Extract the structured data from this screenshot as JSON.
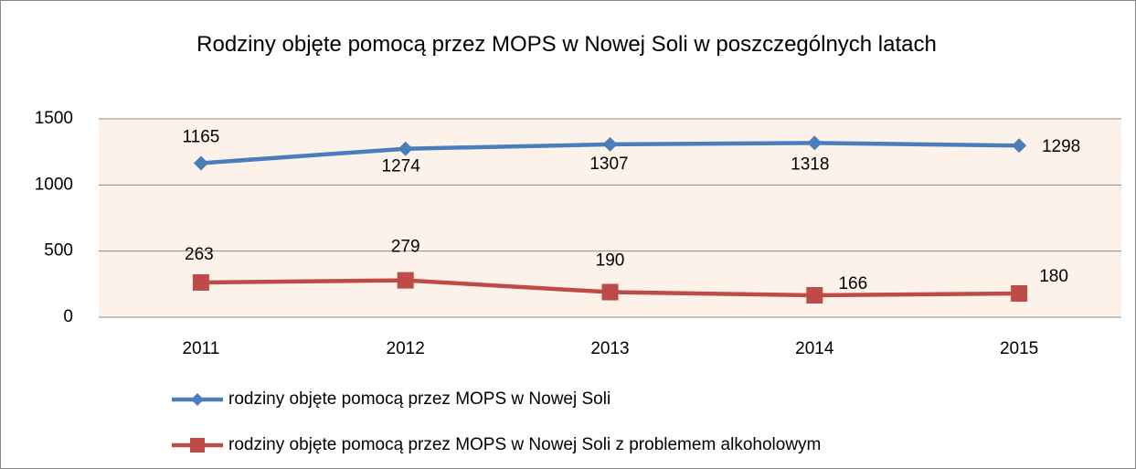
{
  "chart_data": {
    "type": "line",
    "title": "Rodziny objęte pomocą przez MOPS w Nowej Soli w poszczególnych latach",
    "categories": [
      "2011",
      "2012",
      "2013",
      "2014",
      "2015"
    ],
    "series": [
      {
        "name": "rodziny objęte pomocą przez MOPS w Nowej Soli",
        "color": "#4a7ebb",
        "marker": "diamond",
        "values": [
          1165,
          1274,
          1307,
          1318,
          1298
        ]
      },
      {
        "name": "rodziny objęte pomocą przez MOPS w Nowej Soli z problemem alkoholowym",
        "color": "#be4b48",
        "marker": "square",
        "values": [
          263,
          279,
          190,
          166,
          180
        ]
      }
    ],
    "ylim": [
      0,
      1500
    ],
    "yticks": [
      0,
      500,
      1000,
      1500
    ],
    "grid": true,
    "legend": "bottom"
  }
}
